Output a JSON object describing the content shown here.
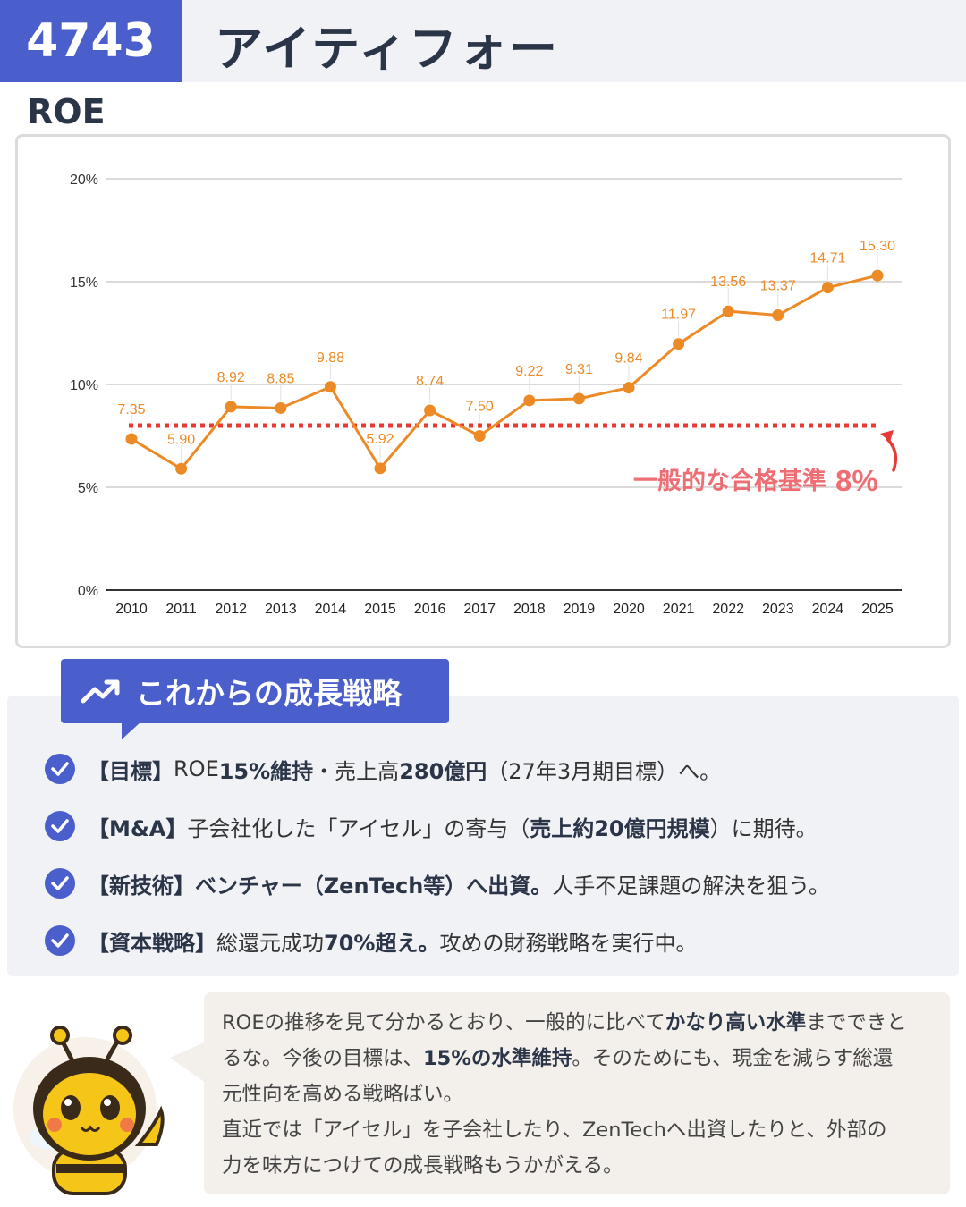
{
  "header": {
    "code": "4743",
    "company": "アイティフォー"
  },
  "section_title": "ROE",
  "chart_data": {
    "type": "line",
    "title": "",
    "x": [
      "2010",
      "2011",
      "2012",
      "2013",
      "2014",
      "2015",
      "2016",
      "2017",
      "2018",
      "2019",
      "2020",
      "2021",
      "2022",
      "2023",
      "2024",
      "2025"
    ],
    "series": [
      {
        "values": [
          7.35,
          5.9,
          8.92,
          8.85,
          9.88,
          5.92,
          8.74,
          7.5,
          9.22,
          9.31,
          9.84,
          11.97,
          13.56,
          13.37,
          14.71,
          15.3
        ]
      }
    ],
    "data_labels": [
      "7.35",
      "5.90",
      "8.92",
      "8.85",
      "9.88",
      "5.92",
      "8.74",
      "7.50",
      "9.22",
      "9.31",
      "9.84",
      "11.97",
      "13.56",
      "13.37",
      "14.71",
      "15.30"
    ],
    "y_ticks": [
      "0%",
      "5%",
      "10%",
      "15%",
      "20%"
    ],
    "y_tick_values": [
      0,
      5,
      10,
      15,
      20
    ],
    "ylim": [
      0,
      20
    ],
    "grid": true,
    "benchmark": {
      "value": 8,
      "label": "一般的な合格基準",
      "value_label": "8%"
    },
    "colors": {
      "line": "#ec8a26",
      "benchmark": "#e83a35",
      "benchmark_label": "#ee6e74"
    }
  },
  "strategy": {
    "badge_icon": "trending-up-icon",
    "title": "これからの成長戦略",
    "items": [
      [
        {
          "t": "【目標】",
          "b": true
        },
        {
          "t": "ROE"
        },
        {
          "t": "15%維持",
          "b": true
        },
        {
          "t": "・売上高"
        },
        {
          "t": "280億円",
          "b": true
        },
        {
          "t": "（27年3月期目標）へ。"
        }
      ],
      [
        {
          "t": "【M&A】",
          "b": true
        },
        {
          "t": "子会社化した「アイセル」の寄与（"
        },
        {
          "t": "売上約20億円規模",
          "b": true
        },
        {
          "t": "）に期待。"
        }
      ],
      [
        {
          "t": "【新技術】ベンチャー（ZenTech等）へ出資。",
          "b": true
        },
        {
          "t": "人手不足課題の解決を狙う。"
        }
      ],
      [
        {
          "t": "【資本戦略】",
          "b": true
        },
        {
          "t": "総還元成功"
        },
        {
          "t": "70%超え。",
          "b": true
        },
        {
          "t": "攻めの財務戦略を実行中。"
        }
      ]
    ]
  },
  "comment": {
    "lines": [
      [
        {
          "t": "ROEの推移を見て分かるとおり、一般的に比べて"
        },
        {
          "t": "かなり高い水準",
          "b": true
        },
        {
          "t": "までできと"
        }
      ],
      [
        {
          "t": "るな。今後の目標は、"
        },
        {
          "t": "15%の水準維持",
          "b": true
        },
        {
          "t": "。そのためにも、現金を減らす総還"
        }
      ],
      [
        {
          "t": "元性向を高める戦略ばい。"
        }
      ],
      [
        {
          "t": "直近では「アイセル」を子会社したり、ZenTechへ出資したりと、外部の"
        }
      ],
      [
        {
          "t": "力を味方につけての成長戦略もうかがえる。"
        }
      ]
    ]
  },
  "colors": {
    "accent": "#4a5ecc",
    "title": "#2b3548",
    "panel": "#f1f2f6",
    "speech": "#f3efeb"
  }
}
